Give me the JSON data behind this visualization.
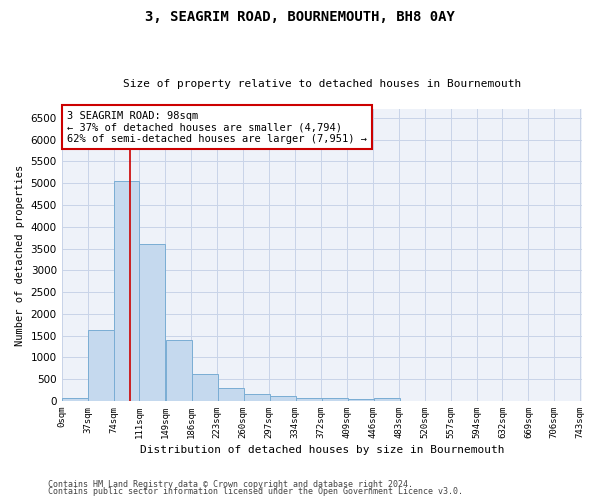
{
  "title": "3, SEAGRIM ROAD, BOURNEMOUTH, BH8 0AY",
  "subtitle": "Size of property relative to detached houses in Bournemouth",
  "xlabel": "Distribution of detached houses by size in Bournemouth",
  "ylabel": "Number of detached properties",
  "bar_color": "#c5d9ee",
  "bar_edge_color": "#7aadd4",
  "grid_color": "#c8d4e8",
  "bins_left": [
    0,
    37,
    74,
    111,
    149,
    186,
    223,
    260,
    297,
    334,
    372,
    409,
    446,
    483,
    520,
    557,
    594,
    632,
    669,
    706
  ],
  "bin_width": 37,
  "bar_heights": [
    75,
    1640,
    5060,
    3600,
    1410,
    615,
    295,
    150,
    105,
    75,
    65,
    55,
    65,
    0,
    0,
    0,
    0,
    0,
    0,
    0
  ],
  "x_tick_labels": [
    "0sqm",
    "37sqm",
    "74sqm",
    "111sqm",
    "149sqm",
    "186sqm",
    "223sqm",
    "260sqm",
    "297sqm",
    "334sqm",
    "372sqm",
    "409sqm",
    "446sqm",
    "483sqm",
    "520sqm",
    "557sqm",
    "594sqm",
    "632sqm",
    "669sqm",
    "706sqm",
    "743sqm"
  ],
  "ylim": [
    0,
    6700
  ],
  "xlim": [
    0,
    743
  ],
  "yticks": [
    0,
    500,
    1000,
    1500,
    2000,
    2500,
    3000,
    3500,
    4000,
    4500,
    5000,
    5500,
    6000,
    6500
  ],
  "property_size": 98,
  "annotation_text": "3 SEAGRIM ROAD: 98sqm\n← 37% of detached houses are smaller (4,794)\n62% of semi-detached houses are larger (7,951) →",
  "annotation_box_color": "#ffffff",
  "annotation_border_color": "#cc0000",
  "red_line_color": "#cc0000",
  "footer_line1": "Contains HM Land Registry data © Crown copyright and database right 2024.",
  "footer_line2": "Contains public sector information licensed under the Open Government Licence v3.0.",
  "background_color": "#eef2f9"
}
